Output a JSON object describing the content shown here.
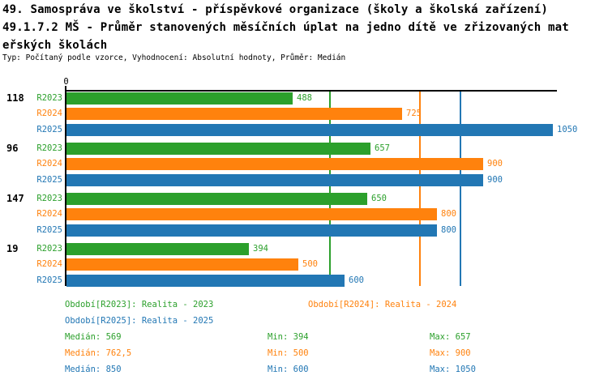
{
  "header": {
    "title_line1": "49. Samospráva ve školství - příspěvkové organizace (školy a školská zařízení)",
    "title_line2": "49.1.7.2 MŠ - Průměr stanovených měsíčních úplat na jedno dítě ve zřizovaných mat",
    "title_line3": "eřských školách",
    "subtitle": "Typ: Počítaný podle vzorce, Vyhodnocení: Absolutní hodnoty, Průměr: Medián"
  },
  "colors": {
    "r2023_green": "#2ca02c",
    "r2024_orange": "#ff820d",
    "r2025_blue": "#2277b4",
    "axis_black": "#000000",
    "background": "#ffffff"
  },
  "chart_data": {
    "type": "bar",
    "orientation": "horizontal",
    "axis_zero_label": "0",
    "xlim": [
      0,
      1050
    ],
    "grid": "median-reference-lines-only",
    "categories": [
      "118",
      "96",
      "147",
      "19"
    ],
    "series": [
      {
        "name": "R2023",
        "color": "#2ca02c",
        "values": [
          488,
          657,
          650,
          394
        ]
      },
      {
        "name": "R2024",
        "color": "#ff820d",
        "values": [
          725,
          900,
          800,
          500
        ]
      },
      {
        "name": "R2025",
        "color": "#2277b4",
        "values": [
          1050,
          900,
          800,
          600
        ]
      }
    ],
    "median_lines": [
      {
        "series": "R2023",
        "value": 569,
        "color": "#2ca02c"
      },
      {
        "series": "R2024",
        "value": 762.5,
        "color": "#ff820d"
      },
      {
        "series": "R2025",
        "value": 850,
        "color": "#2277b4"
      }
    ],
    "legend": [
      {
        "label": "Období[R2023]: Realita - 2023",
        "color": "#2ca02c"
      },
      {
        "label": "Období[R2024]: Realita - 2024",
        "color": "#ff820d"
      },
      {
        "label": "Období[R2025]: Realita - 2025",
        "color": "#2277b4"
      }
    ],
    "legend_position": "below-chart",
    "stats": [
      {
        "median_label": "Medián:",
        "median_value": "569",
        "min_label": "Min:",
        "min_value": "394",
        "max_label": "Max:",
        "max_value": "657",
        "color": "#2ca02c"
      },
      {
        "median_label": "Medián:",
        "median_value": "762,5",
        "min_label": "Min:",
        "min_value": "500",
        "max_label": "Max:",
        "max_value": "900",
        "color": "#ff820d"
      },
      {
        "median_label": "Medián:",
        "median_value": "850",
        "min_label": "Min:",
        "min_value": "600",
        "max_label": "Max:",
        "max_value": "1050",
        "color": "#2277b4"
      }
    ]
  }
}
